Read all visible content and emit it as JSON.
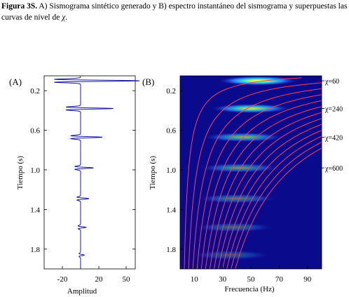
{
  "caption": {
    "label": "Figura 3S.",
    "text": "A) Sismograma sintético generado y B) espectro instantáneo del sismograma y superpuestas las curvas de nivel de",
    "symbol": "χ",
    "end": "."
  },
  "chart_data": [
    {
      "type": "line",
      "panel_label": "(A)",
      "xlabel": "Amplitud",
      "ylabel": "Tiempo (s)",
      "xlim": [
        -40,
        60
      ],
      "ylim": [
        0.05,
        2.0
      ],
      "x_ticks": [
        "-20",
        "20",
        "50"
      ],
      "y_ticks": [
        "0.2",
        "0.6",
        "1.0",
        "1.4",
        "1.8"
      ],
      "wavelets": [
        {
          "t": 0.1,
          "amplitude": 65
        },
        {
          "t": 0.38,
          "amplitude": 36
        },
        {
          "t": 0.67,
          "amplitude": 24
        },
        {
          "t": 0.98,
          "amplitude": 14
        },
        {
          "t": 1.29,
          "amplitude": 9
        },
        {
          "t": 1.58,
          "amplitude": 6
        },
        {
          "t": 1.86,
          "amplitude": 4
        }
      ],
      "line_color": "#1a1a9e"
    },
    {
      "type": "heatmap",
      "panel_label": "(B)",
      "xlabel": "Frecuencia (Hz)",
      "ylabel": "Tiempo (s)",
      "xlim": [
        0,
        100
      ],
      "ylim": [
        0.05,
        2.0
      ],
      "x_ticks": [
        "10",
        "30",
        "50",
        "70",
        "90"
      ],
      "y_ticks": [
        "0.2",
        "0.6",
        "1.0",
        "1.4",
        "1.8"
      ],
      "energy_blobs": [
        {
          "t": 0.1,
          "freq": 55,
          "intensity": 1.0
        },
        {
          "t": 0.38,
          "freq": 50,
          "intensity": 0.82
        },
        {
          "t": 0.67,
          "freq": 45,
          "intensity": 0.62
        },
        {
          "t": 0.98,
          "freq": 42,
          "intensity": 0.5
        },
        {
          "t": 1.29,
          "freq": 40,
          "intensity": 0.4
        },
        {
          "t": 1.58,
          "freq": 38,
          "intensity": 0.33
        },
        {
          "t": 1.86,
          "freq": 36,
          "intensity": 0.28
        }
      ],
      "contour_labels": [
        "χ=60",
        "χ=240",
        "χ=420",
        "χ=600"
      ],
      "background_color": "#0a0a8c",
      "contour_color": "#ff3c5a"
    }
  ]
}
